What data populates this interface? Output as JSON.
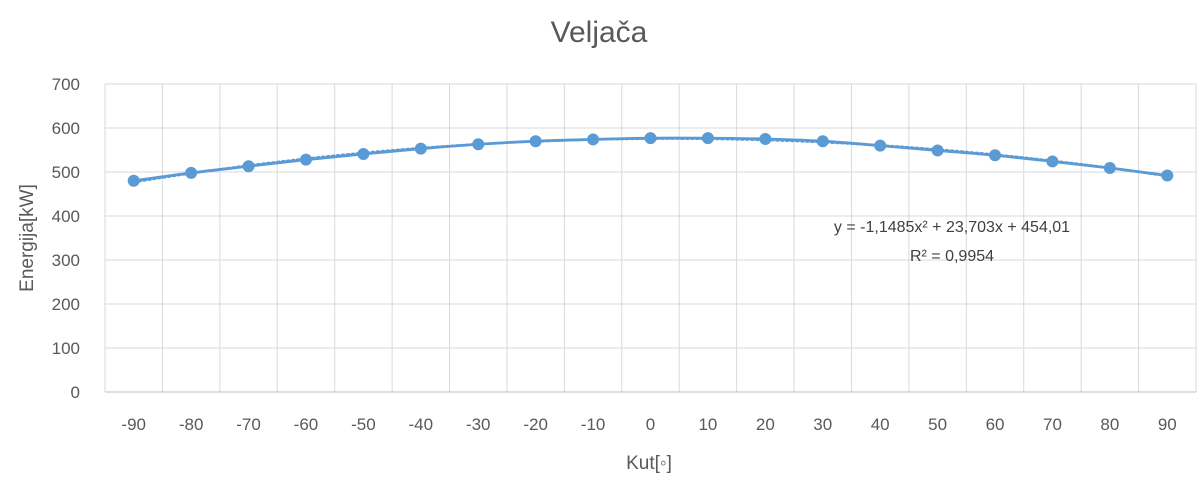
{
  "chart_data": {
    "type": "line",
    "title": "Veljača",
    "xlabel": "Kut[◦]",
    "ylabel": "Energija[kW]",
    "xlim": [
      -90,
      90
    ],
    "ylim": [
      0,
      700
    ],
    "x_ticks": [
      "-90",
      "-80",
      "-70",
      "-60",
      "-50",
      "-40",
      "-30",
      "-20",
      "-10",
      "0",
      "10",
      "20",
      "30",
      "40",
      "50",
      "60",
      "70",
      "80",
      "90"
    ],
    "y_ticks": [
      "0",
      "100",
      "200",
      "300",
      "400",
      "500",
      "600",
      "700"
    ],
    "grid": true,
    "legend": "none",
    "series": [
      {
        "color": "#5b9bd5",
        "x": [
          -90,
          -80,
          -70,
          -60,
          -50,
          -40,
          -30,
          -20,
          -10,
          0,
          10,
          20,
          30,
          40,
          50,
          60,
          70,
          80,
          90
        ],
        "values": [
          480,
          498,
          513,
          528,
          541,
          553,
          563,
          570,
          574,
          577,
          577,
          575,
          570,
          560,
          549,
          538,
          524,
          509,
          492
        ]
      }
    ],
    "trendline": {
      "type": "polynomial",
      "order": 2,
      "style": "dotted",
      "equation": "y = -1,1485x² + 23,703x + 454,01",
      "r_squared": "R² = 0,9954"
    }
  }
}
